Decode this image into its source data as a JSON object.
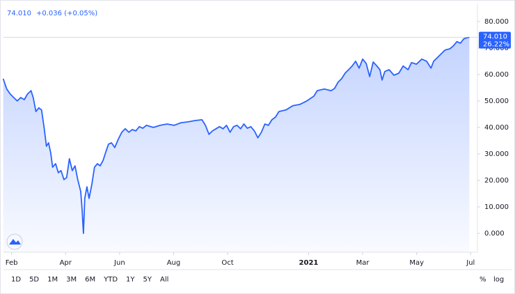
{
  "chart_data": {
    "type": "area",
    "price_label": "74.010",
    "change_label": "+0.036 (+0.05%)",
    "percent_label": "26.22%",
    "color": "#2962ff",
    "xlim": [
      -0.3,
      17.25
    ],
    "xticks": [
      {
        "value": 0,
        "label": "Feb"
      },
      {
        "value": 2,
        "label": "Apr"
      },
      {
        "value": 4,
        "label": "Jun"
      },
      {
        "value": 6,
        "label": "Aug"
      },
      {
        "value": 8,
        "label": "Oct"
      },
      {
        "value": 11,
        "label": "2021"
      },
      {
        "value": 13,
        "label": "Mar"
      },
      {
        "value": 15,
        "label": "May"
      },
      {
        "value": 17,
        "label": "Jul"
      }
    ],
    "ylim": [
      -7.1,
      86.8
    ],
    "yticks": [
      {
        "value": 0,
        "label": "0.000"
      },
      {
        "value": 10,
        "label": "10.000"
      },
      {
        "value": 20,
        "label": "20.000"
      },
      {
        "value": 30,
        "label": "30.000"
      },
      {
        "value": 40,
        "label": "40.000"
      },
      {
        "value": 50,
        "label": "50.000"
      },
      {
        "value": 60,
        "label": "60.000"
      },
      {
        "value": 70,
        "label": "70.000"
      },
      {
        "value": 80,
        "label": "80.000"
      }
    ],
    "x": [
      -0.31,
      -0.18,
      -0.05,
      0.08,
      0.21,
      0.34,
      0.47,
      0.59,
      0.72,
      0.8,
      0.9,
      1.01,
      1.11,
      1.21,
      1.29,
      1.37,
      1.45,
      1.52,
      1.63,
      1.73,
      1.83,
      1.94,
      2.04,
      2.14,
      2.25,
      2.35,
      2.45,
      2.56,
      2.61,
      2.66,
      2.71,
      2.79,
      2.87,
      2.97,
      3.07,
      3.18,
      3.28,
      3.39,
      3.49,
      3.59,
      3.7,
      3.82,
      3.95,
      4.08,
      4.21,
      4.34,
      4.47,
      4.6,
      4.73,
      4.86,
      4.99,
      5.25,
      5.5,
      5.76,
      6.02,
      6.28,
      6.54,
      6.8,
      7.05,
      7.18,
      7.31,
      7.44,
      7.57,
      7.7,
      7.83,
      7.96,
      8.09,
      8.22,
      8.35,
      8.48,
      8.6,
      8.73,
      8.86,
      8.99,
      9.12,
      9.25,
      9.38,
      9.51,
      9.64,
      9.77,
      9.9,
      10.16,
      10.41,
      10.67,
      10.93,
      11.19,
      11.32,
      11.58,
      11.83,
      11.96,
      12.09,
      12.22,
      12.35,
      12.48,
      12.61,
      12.74,
      12.87,
      13.0,
      13.13,
      13.26,
      13.39,
      13.51,
      13.64,
      13.72,
      13.82,
      13.98,
      14.16,
      14.34,
      14.5,
      14.68,
      14.81,
      14.99,
      15.19,
      15.37,
      15.53,
      15.63,
      15.84,
      16.05,
      16.23,
      16.36,
      16.49,
      16.62,
      16.74,
      16.87,
      16.95
    ],
    "values": [
      58.4,
      54.5,
      52.6,
      51.3,
      50,
      51.3,
      50.5,
      52.6,
      53.9,
      51.3,
      46,
      47.4,
      46.6,
      39.5,
      32.9,
      34.2,
      30.3,
      25,
      26.3,
      22.9,
      23.7,
      20.3,
      21.1,
      28.2,
      23.7,
      25.5,
      20.3,
      15.8,
      9.2,
      0,
      13.2,
      17.6,
      13.2,
      18.4,
      25,
      26.3,
      25.5,
      27.6,
      30.8,
      33.7,
      34.2,
      32.4,
      35.5,
      38.2,
      39.5,
      38.2,
      39.2,
      38.7,
      40.3,
      39.7,
      40.8,
      40,
      40.8,
      41.3,
      40.8,
      41.8,
      42.1,
      42.6,
      42.9,
      40.8,
      37.4,
      38.7,
      39.5,
      40.3,
      39.5,
      40.8,
      38.2,
      40.3,
      40.8,
      39.5,
      41.3,
      39.7,
      40.3,
      38.7,
      36.1,
      38.2,
      41.3,
      40.8,
      42.9,
      43.9,
      46,
      46.6,
      48.2,
      48.7,
      50,
      51.8,
      53.9,
      54.5,
      53.9,
      54.7,
      57.1,
      58.4,
      60.5,
      61.8,
      63.2,
      65,
      62.4,
      65.8,
      64.2,
      59.2,
      64.7,
      63.4,
      61.8,
      57.9,
      61.1,
      61.8,
      59.7,
      60.5,
      63.2,
      61.8,
      64.5,
      63.9,
      65.8,
      65,
      62.4,
      65,
      67.1,
      69.2,
      69.7,
      70.8,
      72.4,
      71.8,
      73.4,
      73.9,
      74.01
    ],
    "ranges": [
      "1D",
      "5D",
      "1M",
      "3M",
      "6M",
      "YTD",
      "1Y",
      "5Y",
      "All"
    ],
    "scale_options": [
      "%",
      "log"
    ]
  }
}
